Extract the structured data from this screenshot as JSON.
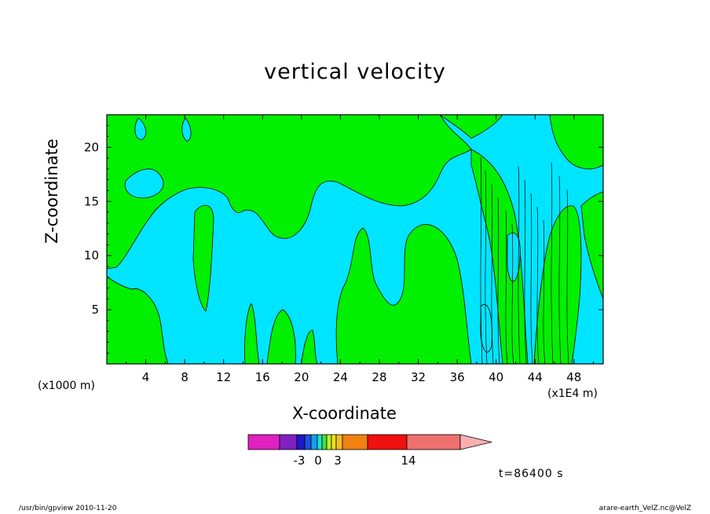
{
  "chart_data": {
    "type": "heatmap",
    "title": "vertical velocity",
    "xlabel": "X-coordinate",
    "ylabel": "Z-coordinate",
    "x_unit_label": "(x1E4 m)",
    "y_unit_label": "(x1000 m)",
    "time_label": "t=86400 s",
    "xlim": [
      0,
      51
    ],
    "ylim": [
      0,
      23
    ],
    "x_ticks": [
      "4",
      "8",
      "12",
      "16",
      "20",
      "24",
      "28",
      "32",
      "36",
      "40",
      "44",
      "48"
    ],
    "y_ticks": [
      "5",
      "10",
      "15",
      "20"
    ],
    "levels": [
      -3,
      0,
      3,
      14
    ],
    "colorbar_tick_labels": [
      "-3",
      "0",
      "3",
      "14"
    ],
    "colorbar_colors": [
      "#e020c0",
      "#8020c0",
      "#1a1acc",
      "#1f4fe0",
      "#10a0f0",
      "#20e0d0",
      "#40e040",
      "#c0f020",
      "#f0e020",
      "#f0c020",
      "#f08010",
      "#f01010",
      "#f07070",
      "#f8b0b0"
    ],
    "field_colors": {
      "negative": "#00e5ff",
      "positive": "#00f000"
    },
    "note_values": "shaded contour plot: cyan regions = negative/near-zero vertical velocity, green = positive"
  },
  "footer": {
    "left": "/usr/bin/gpview   2010-11-20",
    "right": "arare-earth_VelZ.nc@VelZ"
  }
}
